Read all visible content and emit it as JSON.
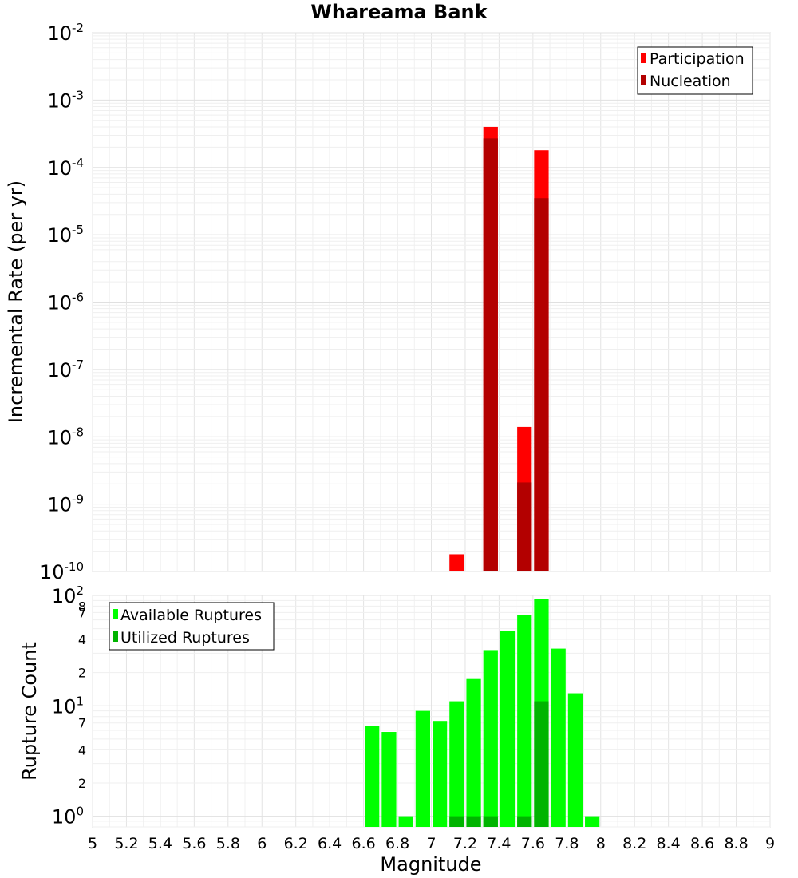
{
  "chart_data": {
    "title": "Whareama Bank",
    "xlabel": "Magnitude",
    "xlim": [
      5,
      9
    ],
    "x_ticks": [
      "5",
      "5.2",
      "5.4",
      "5.6",
      "5.8",
      "6",
      "6.2",
      "6.4",
      "6.6",
      "6.8",
      "7",
      "7.2",
      "7.4",
      "7.6",
      "7.8",
      "8",
      "8.2",
      "8.4",
      "8.6",
      "8.8",
      "9"
    ],
    "bin_width": 0.1,
    "panels": [
      {
        "type": "bar",
        "scale": "log",
        "ylabel": "Incremental Rate (per yr)",
        "ylim": [
          1e-10,
          0.01
        ],
        "y_ticks": [
          {
            "base": "10",
            "exp": "-2"
          },
          {
            "base": "10",
            "exp": "-3"
          },
          {
            "base": "10",
            "exp": "-4"
          },
          {
            "base": "10",
            "exp": "-5"
          },
          {
            "base": "10",
            "exp": "-6"
          },
          {
            "base": "10",
            "exp": "-7"
          },
          {
            "base": "10",
            "exp": "-8"
          },
          {
            "base": "10",
            "exp": "-9"
          },
          {
            "base": "10",
            "exp": "-10"
          }
        ],
        "legend_position": "top-right",
        "series": [
          {
            "name": "Participation",
            "color": "#ff0000",
            "x": [
              7.15,
              7.35,
              7.55,
              7.65
            ],
            "values": [
              1.8e-10,
              0.0004,
              1.4e-08,
              0.00018
            ]
          },
          {
            "name": "Nucleation",
            "color": "#b30000",
            "x": [
              7.35,
              7.55,
              7.65
            ],
            "values": [
              0.00027,
              2.1e-09,
              3.5e-05
            ]
          }
        ]
      },
      {
        "type": "bar",
        "scale": "log",
        "ylabel": "Rupture Count",
        "ylim": [
          0.8,
          100
        ],
        "y_ticks": [
          {
            "base": "10",
            "exp": "2"
          },
          {
            "label": "7"
          },
          {
            "label": "4"
          },
          {
            "label": "2"
          },
          {
            "base": "10",
            "exp": "1"
          },
          {
            "label": "7"
          },
          {
            "label": "4"
          },
          {
            "label": "2"
          },
          {
            "base": "10",
            "exp": "0"
          },
          {
            "label": "8"
          }
        ],
        "legend_position": "top-left",
        "series": [
          {
            "name": "Available Ruptures",
            "color": "#00ff00",
            "x": [
              6.65,
              6.75,
              6.85,
              6.95,
              7.05,
              7.15,
              7.25,
              7.35,
              7.45,
              7.55,
              7.65,
              7.75,
              7.85,
              7.95
            ],
            "values": [
              6.6,
              5.8,
              1.0,
              9.0,
              7.3,
              11.0,
              17.5,
              32.0,
              48.0,
              66.0,
              93.0,
              33.0,
              13.0,
              1.0
            ]
          },
          {
            "name": "Utilized Ruptures",
            "color": "#00b400",
            "x": [
              7.15,
              7.25,
              7.35,
              7.55,
              7.65
            ],
            "values": [
              1.0,
              1.0,
              1.0,
              1.0,
              11.0
            ]
          }
        ]
      }
    ]
  }
}
